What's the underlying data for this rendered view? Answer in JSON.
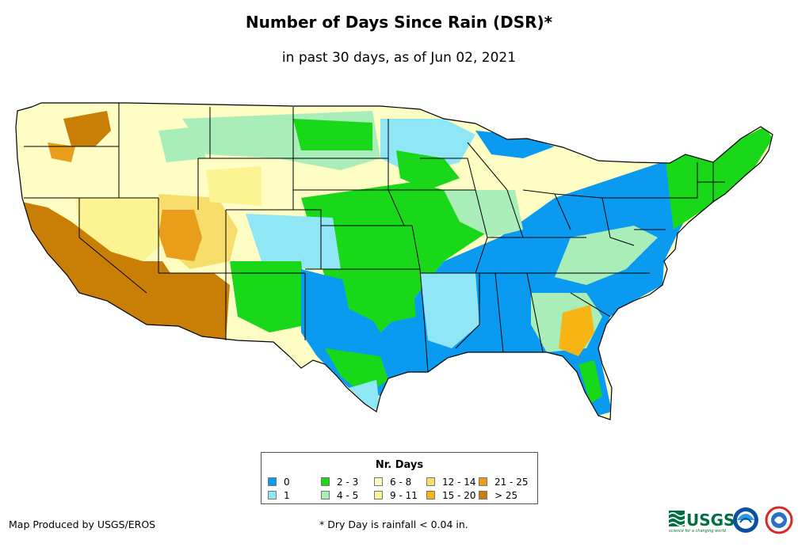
{
  "title": "Number of Days Since Rain (DSR)*",
  "subtitle": "in past 30 days, as of Jun 02, 2021",
  "legend": {
    "title": "Nr. Days",
    "items": [
      {
        "label": "0",
        "color": "#0a9bf0"
      },
      {
        "label": "1",
        "color": "#8fe6f5"
      },
      {
        "label": "2 - 3",
        "color": "#19d719"
      },
      {
        "label": "4 - 5",
        "color": "#a9edb9"
      },
      {
        "label": "6 - 8",
        "color": "#fdfdc4"
      },
      {
        "label": "9 - 11",
        "color": "#fcf392"
      },
      {
        "label": "12 - 14",
        "color": "#f7dd6c"
      },
      {
        "label": "15 - 20",
        "color": "#f7b513"
      },
      {
        "label": "21 - 25",
        "color": "#e89d1b"
      },
      {
        "label": "> 25",
        "color": "#c97e06"
      }
    ]
  },
  "credit": "Map Produced by USGS/EROS",
  "footnote": "* Dry Day is rainfall < 0.04 in.",
  "logos": {
    "usgs": "USGS",
    "usgs_tagline": "science for a changing world",
    "noaa": "NOAA",
    "nws": "National Weather Service"
  }
}
